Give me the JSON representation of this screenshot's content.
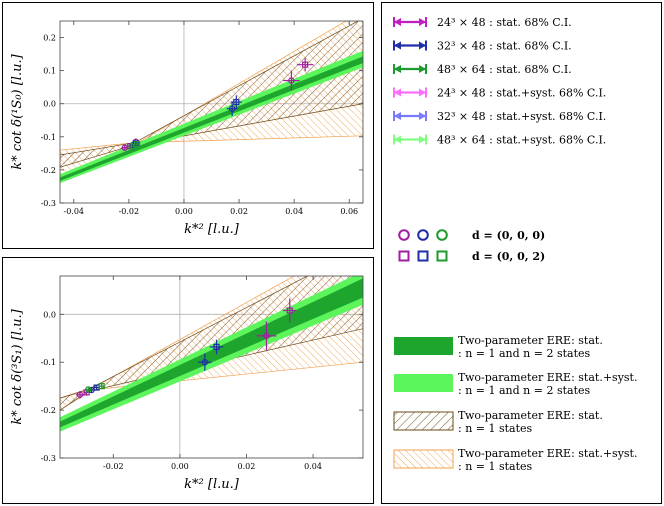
{
  "chart_data": [
    {
      "type": "scatter",
      "name": "1S0 channel",
      "xlabel": "k*² [l.u.]",
      "ylabel": "k* cot δ(¹S₀) [l.u.]",
      "xlim": [
        -0.045,
        0.065
      ],
      "ylim": [
        -0.3,
        0.25
      ],
      "xticks": [
        "-0.04",
        "-0.02",
        "0.00",
        "0.02",
        "0.04",
        "0.06"
      ],
      "yticks": [
        "-0.3",
        "-0.2",
        "-0.1",
        "0.0",
        "0.1",
        "0.2"
      ],
      "xtick_values": [
        -0.04,
        -0.02,
        0.0,
        0.02,
        0.04,
        0.06
      ],
      "ytick_values": [
        -0.3,
        -0.2,
        -0.1,
        0.0,
        0.1,
        0.2
      ],
      "bands": {
        "green_stat": {
          "lower": [
            [
              -0.045,
              -0.233
            ],
            [
              0.065,
              0.123
            ]
          ],
          "upper": [
            [
              -0.045,
              -0.223
            ],
            [
              0.065,
              0.143
            ]
          ]
        },
        "green_syst": {
          "lower": [
            [
              -0.045,
              -0.24
            ],
            [
              0.065,
              0.11
            ]
          ],
          "upper": [
            [
              -0.045,
              -0.213
            ],
            [
              0.065,
              0.16
            ]
          ]
        },
        "black_hatch": {
          "lower": [
            [
              -0.045,
              -0.192
            ],
            [
              -0.018,
              -0.124
            ],
            [
              0.065,
              0.0
            ]
          ],
          "upper": [
            [
              -0.045,
              -0.155
            ],
            [
              -0.018,
              -0.118
            ],
            [
              0.065,
              0.258
            ]
          ]
        },
        "orange_hatch": {
          "lower": [
            [
              -0.045,
              -0.14
            ],
            [
              -0.018,
              -0.118
            ],
            [
              0.065,
              -0.097
            ]
          ],
          "upper": [
            [
              -0.045,
              -0.23
            ],
            [
              -0.018,
              -0.124
            ],
            [
              0.065,
              0.28
            ]
          ]
        }
      },
      "points": [
        {
          "x": -0.0215,
          "y": -0.133,
          "xe": 0.001,
          "ye": 0.008,
          "marker": "circle",
          "color": "#a01fa0"
        },
        {
          "x": -0.0195,
          "y": -0.128,
          "xe": 0.001,
          "ye": 0.009,
          "marker": "square",
          "color": "#a01fa0"
        },
        {
          "x": -0.0175,
          "y": -0.115,
          "xe": 0.001,
          "ye": 0.01,
          "marker": "circle",
          "color": "#a01fa0"
        },
        {
          "x": -0.0185,
          "y": -0.125,
          "xe": 0.001,
          "ye": 0.006,
          "marker": "circle",
          "color": "#1f2fa6"
        },
        {
          "x": -0.0175,
          "y": -0.12,
          "xe": 0.001,
          "ye": 0.006,
          "marker": "square",
          "color": "#1f2fa6"
        },
        {
          "x": -0.019,
          "y": -0.128,
          "xe": 0.001,
          "ye": 0.005,
          "marker": "circle",
          "color": "#1e9a2e"
        },
        {
          "x": -0.017,
          "y": -0.122,
          "xe": 0.001,
          "ye": 0.005,
          "marker": "square",
          "color": "#1e9a2e"
        },
        {
          "x": 0.0175,
          "y": -0.015,
          "xe": 0.002,
          "ye": 0.022,
          "marker": "circle",
          "color": "#1f2fa6"
        },
        {
          "x": 0.019,
          "y": 0.005,
          "xe": 0.002,
          "ye": 0.02,
          "marker": "square",
          "color": "#1f2fa6"
        },
        {
          "x": 0.039,
          "y": 0.07,
          "xe": 0.003,
          "ye": 0.03,
          "marker": "circle",
          "color": "#a01fa0"
        },
        {
          "x": 0.044,
          "y": 0.118,
          "xe": 0.003,
          "ye": 0.02,
          "marker": "square",
          "color": "#a01fa0"
        }
      ]
    },
    {
      "type": "scatter",
      "name": "3S1 channel",
      "xlabel": "k*² [l.u.]",
      "ylabel": "k* cot δ(³S₁) [l.u.]",
      "xlim": [
        -0.036,
        0.055
      ],
      "ylim": [
        -0.3,
        0.08
      ],
      "xticks": [
        "-0.04",
        "-0.02",
        "0.00",
        "0.02",
        "0.04"
      ],
      "yticks": [
        "-0.3",
        "-0.2",
        "-0.1",
        "0.0"
      ],
      "xtick_values": [
        -0.04,
        -0.02,
        0.0,
        0.02,
        0.04
      ],
      "ytick_values": [
        -0.3,
        -0.2,
        -0.1,
        0.0
      ],
      "bands": {
        "green_stat": {
          "lower": [
            [
              -0.036,
              -0.236
            ],
            [
              0.055,
              0.035
            ]
          ],
          "upper": [
            [
              -0.036,
              -0.224
            ],
            [
              0.055,
              0.075
            ]
          ]
        },
        "green_syst": {
          "lower": [
            [
              -0.036,
              -0.245
            ],
            [
              0.055,
              0.02
            ]
          ],
          "upper": [
            [
              -0.036,
              -0.215
            ],
            [
              0.055,
              0.09
            ]
          ]
        },
        "black_hatch": {
          "lower": [
            [
              -0.036,
              -0.2
            ],
            [
              -0.027,
              -0.16
            ],
            [
              0.055,
              -0.03
            ]
          ],
          "upper": [
            [
              -0.036,
              -0.175
            ],
            [
              -0.027,
              -0.155
            ],
            [
              0.055,
              0.14
            ]
          ]
        },
        "orange_hatch": {
          "lower": [
            [
              -0.036,
              -0.175
            ],
            [
              -0.027,
              -0.158
            ],
            [
              0.055,
              -0.1
            ]
          ],
          "upper": [
            [
              -0.036,
              -0.2
            ],
            [
              -0.027,
              -0.157
            ],
            [
              0.055,
              0.16
            ]
          ]
        }
      },
      "points": [
        {
          "x": -0.03,
          "y": -0.168,
          "xe": 0.0012,
          "ye": 0.008,
          "marker": "circle",
          "color": "#a01fa0"
        },
        {
          "x": -0.028,
          "y": -0.163,
          "xe": 0.001,
          "ye": 0.007,
          "marker": "square",
          "color": "#a01fa0"
        },
        {
          "x": -0.0265,
          "y": -0.158,
          "xe": 0.001,
          "ye": 0.006,
          "marker": "circle",
          "color": "#1f2fa6"
        },
        {
          "x": -0.025,
          "y": -0.153,
          "xe": 0.001,
          "ye": 0.006,
          "marker": "square",
          "color": "#1f2fa6"
        },
        {
          "x": -0.0275,
          "y": -0.157,
          "xe": 0.001,
          "ye": 0.005,
          "marker": "circle",
          "color": "#1e9a2e"
        },
        {
          "x": -0.0235,
          "y": -0.15,
          "xe": 0.001,
          "ye": 0.005,
          "marker": "square",
          "color": "#1e9a2e"
        },
        {
          "x": 0.0075,
          "y": -0.1,
          "xe": 0.002,
          "ye": 0.018,
          "marker": "circle",
          "color": "#1f2fa6"
        },
        {
          "x": 0.011,
          "y": -0.068,
          "xe": 0.002,
          "ye": 0.015,
          "marker": "square",
          "color": "#1f2fa6"
        },
        {
          "x": 0.026,
          "y": -0.045,
          "xe": 0.003,
          "ye": 0.03,
          "marker": "circle",
          "color": "#a01fa0"
        },
        {
          "x": 0.033,
          "y": 0.008,
          "xe": 0.002,
          "ye": 0.025,
          "marker": "square",
          "color": "#a01fa0"
        }
      ]
    }
  ],
  "legend": {
    "lattices": [
      {
        "label": "24³ × 48 : stat. 68% C.I.",
        "color": "#c020c0"
      },
      {
        "label": "32³ × 48 : stat. 68% C.I.",
        "color": "#1f2fa6"
      },
      {
        "label": "48³ × 64 : stat. 68% C.I.",
        "color": "#1e9a2e"
      },
      {
        "label": "24³ × 48 : stat.+syst. 68% C.I.",
        "color": "#ff6eff"
      },
      {
        "label": "32³ × 48 : stat.+syst. 68% C.I.",
        "color": "#7a7aff"
      },
      {
        "label": "48³ × 64 : stat.+syst. 68% C.I.",
        "color": "#80ff80"
      }
    ],
    "boosts": [
      {
        "label": "d = (0, 0, 0)",
        "marker": "circle"
      },
      {
        "label": "d = (0, 0, 2)",
        "marker": "square"
      }
    ],
    "marker_colors": [
      "#a01fa0",
      "#1f2fa6",
      "#1e9a2e"
    ],
    "bands": [
      {
        "line1": "Two-parameter ERE: stat.",
        "line2": ": n = 1 and n = 2 states",
        "style": "solid",
        "color": "#1ea52e"
      },
      {
        "line1": "Two-parameter ERE: stat.+syst.",
        "line2": ": n = 1 and n = 2 states",
        "style": "solid",
        "color": "#5cf55c"
      },
      {
        "line1": "Two-parameter ERE: stat.",
        "line2": ": n = 1 states",
        "style": "hatch",
        "color": "#6b4a1a"
      },
      {
        "line1": "Two-parameter ERE: stat.+syst.",
        "line2": ": n = 1 states",
        "style": "hatch",
        "color": "#f0a050"
      }
    ]
  }
}
